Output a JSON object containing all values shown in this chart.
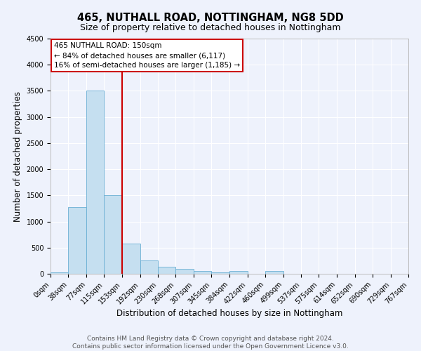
{
  "title": "465, NUTHALL ROAD, NOTTINGHAM, NG8 5DD",
  "subtitle": "Size of property relative to detached houses in Nottingham",
  "xlabel": "Distribution of detached houses by size in Nottingham",
  "ylabel": "Number of detached properties",
  "bar_color": "#c5dff0",
  "bar_edge_color": "#6aafd4",
  "background_color": "#eef2fc",
  "grid_color": "#ffffff",
  "bin_labels": [
    "0sqm",
    "38sqm",
    "77sqm",
    "115sqm",
    "153sqm",
    "192sqm",
    "230sqm",
    "268sqm",
    "307sqm",
    "345sqm",
    "384sqm",
    "422sqm",
    "460sqm",
    "499sqm",
    "537sqm",
    "575sqm",
    "614sqm",
    "652sqm",
    "690sqm",
    "729sqm",
    "767sqm"
  ],
  "bin_edges": [
    0,
    38,
    77,
    115,
    153,
    192,
    230,
    268,
    307,
    345,
    384,
    422,
    460,
    499,
    537,
    575,
    614,
    652,
    690,
    729,
    767
  ],
  "bar_heights": [
    30,
    1270,
    3500,
    1500,
    580,
    250,
    140,
    90,
    50,
    30,
    50,
    0,
    60,
    0,
    0,
    0,
    0,
    0,
    0,
    0
  ],
  "property_line_x": 153,
  "property_line_color": "#cc0000",
  "annotation_text": "465 NUTHALL ROAD: 150sqm\n← 84% of detached houses are smaller (6,117)\n16% of semi-detached houses are larger (1,185) →",
  "annotation_box_color": "#cc0000",
  "ylim": [
    0,
    4500
  ],
  "yticks": [
    0,
    500,
    1000,
    1500,
    2000,
    2500,
    3000,
    3500,
    4000,
    4500
  ],
  "footnote": "Contains HM Land Registry data © Crown copyright and database right 2024.\nContains public sector information licensed under the Open Government Licence v3.0.",
  "title_fontsize": 10.5,
  "subtitle_fontsize": 9,
  "axis_label_fontsize": 8.5,
  "tick_fontsize": 7,
  "annotation_fontsize": 7.5,
  "footnote_fontsize": 6.5
}
